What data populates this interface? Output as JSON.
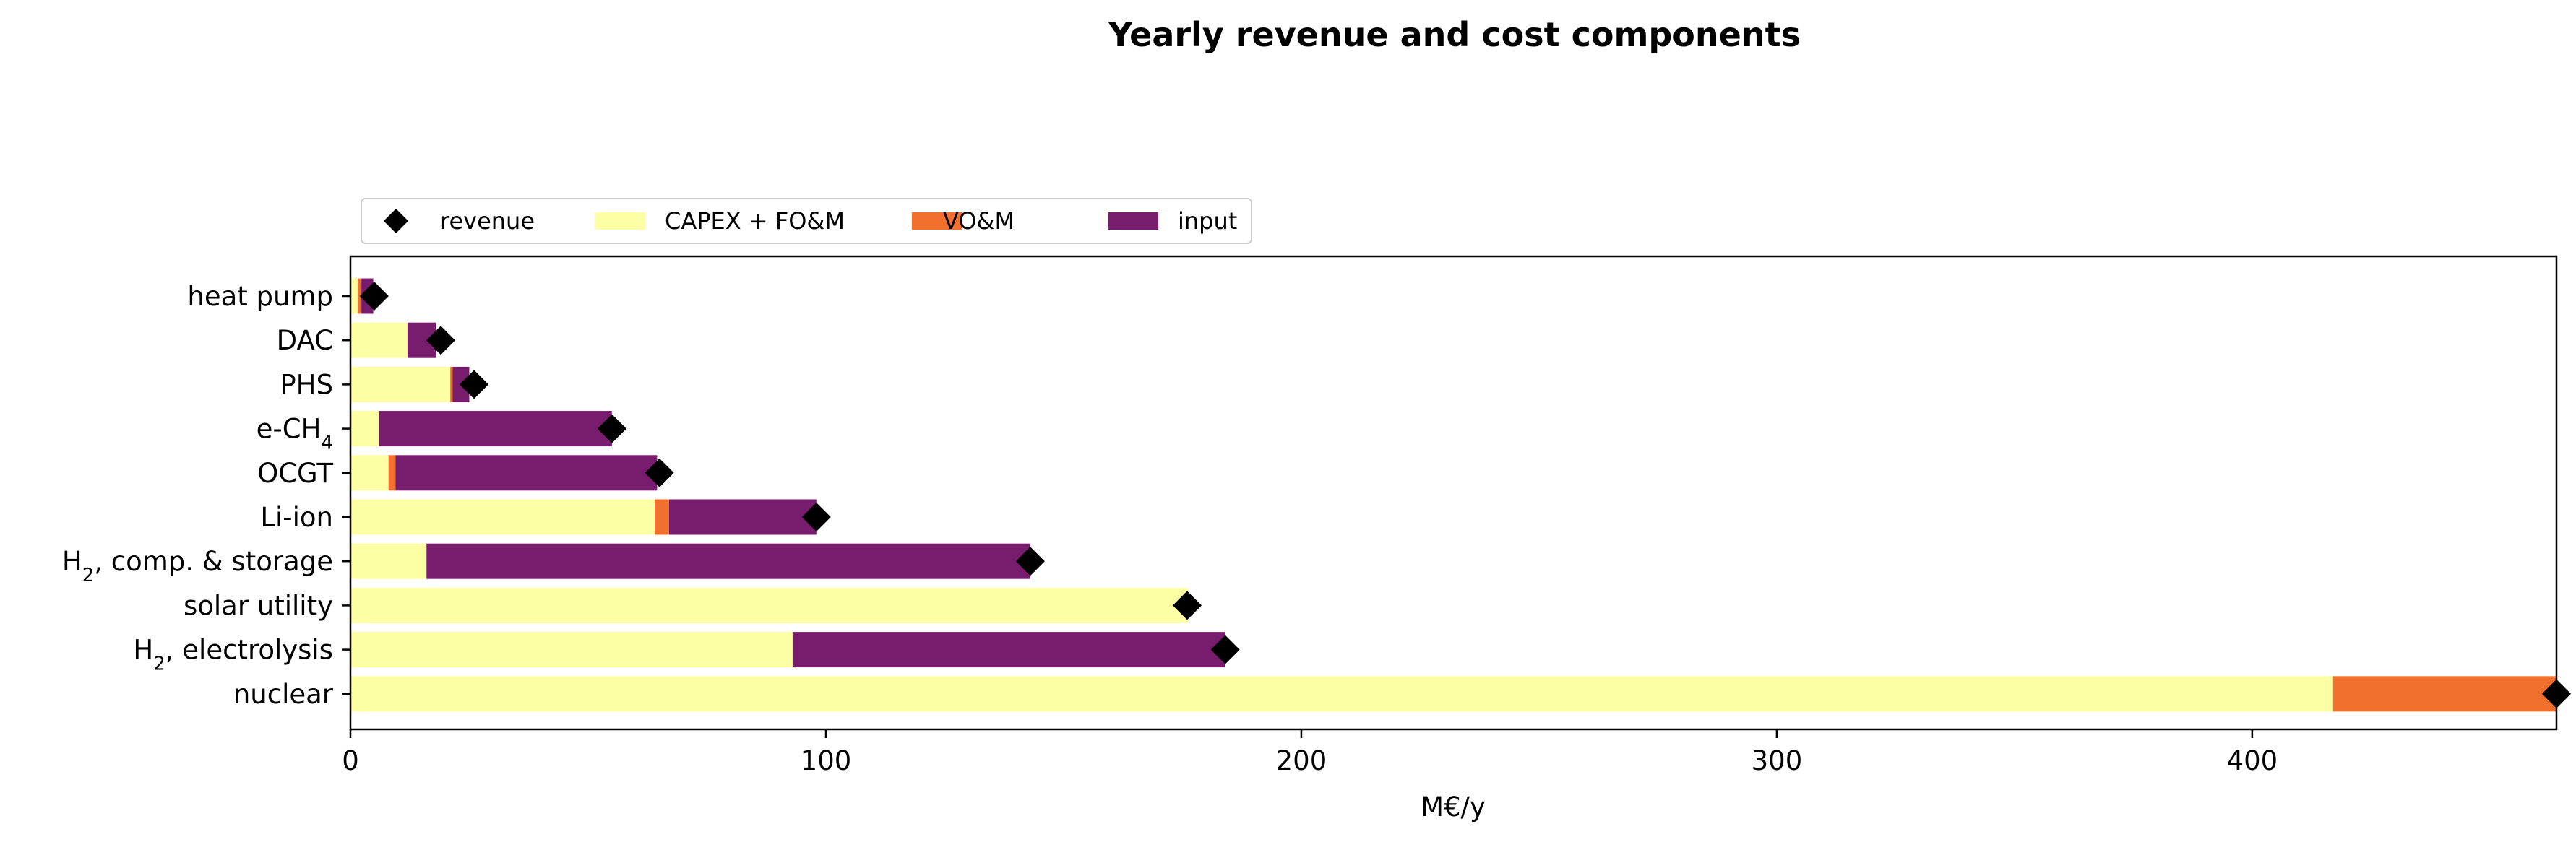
{
  "chart_data": {
    "type": "bar",
    "orientation": "horizontal",
    "stacked": true,
    "title": "Yearly revenue and cost components",
    "xlabel": "M€/y",
    "ylabel": "",
    "xlim": [
      0,
      464
    ],
    "xticks": [
      0,
      100,
      200,
      300,
      400
    ],
    "xtick_labels": [
      "0",
      "100",
      "200",
      "300",
      "400"
    ],
    "grid": false,
    "legend_position": "top-left, above plot",
    "categories": [
      {
        "label": "heat pump",
        "base": "heat pump",
        "sub": ""
      },
      {
        "label": "DAC",
        "base": "DAC",
        "sub": ""
      },
      {
        "label": "PHS",
        "base": "PHS",
        "sub": ""
      },
      {
        "label": "e-CH4",
        "base": "e-CH",
        "sub": "4",
        "rest": ""
      },
      {
        "label": "OCGT",
        "base": "OCGT",
        "sub": ""
      },
      {
        "label": "Li-ion",
        "base": "Li-ion",
        "sub": ""
      },
      {
        "label": "H2, comp. & storage",
        "base": "H",
        "sub": "2",
        "rest": ", comp. & storage"
      },
      {
        "label": "solar utility",
        "base": "solar utility",
        "sub": ""
      },
      {
        "label": "H2, electrolysis",
        "base": "H",
        "sub": "2",
        "rest": ", electrolysis"
      },
      {
        "label": "nuclear",
        "base": "nuclear",
        "sub": ""
      }
    ],
    "series": [
      {
        "name": "CAPEX + FO&M",
        "color": "#fcffa4",
        "values": [
          1.5,
          12,
          21,
          6,
          8,
          64,
          16,
          176,
          93,
          417
        ]
      },
      {
        "name": "VO&M",
        "color": "#f1702e",
        "values": [
          0.8,
          0,
          0.5,
          0,
          1.5,
          3,
          0,
          0,
          0,
          47
        ]
      },
      {
        "name": "input",
        "color": "#781c6d",
        "values": [
          2.5,
          6,
          3.5,
          49,
          55,
          31,
          127,
          0,
          91,
          0
        ]
      }
    ],
    "revenue": {
      "name": "revenue",
      "color": "#000000",
      "marker": "diamond",
      "values": [
        5,
        19,
        26,
        55,
        65,
        98,
        143,
        176,
        184,
        464
      ]
    },
    "legend": [
      "revenue",
      "CAPEX + FO&M",
      "VO&M",
      "input"
    ]
  }
}
